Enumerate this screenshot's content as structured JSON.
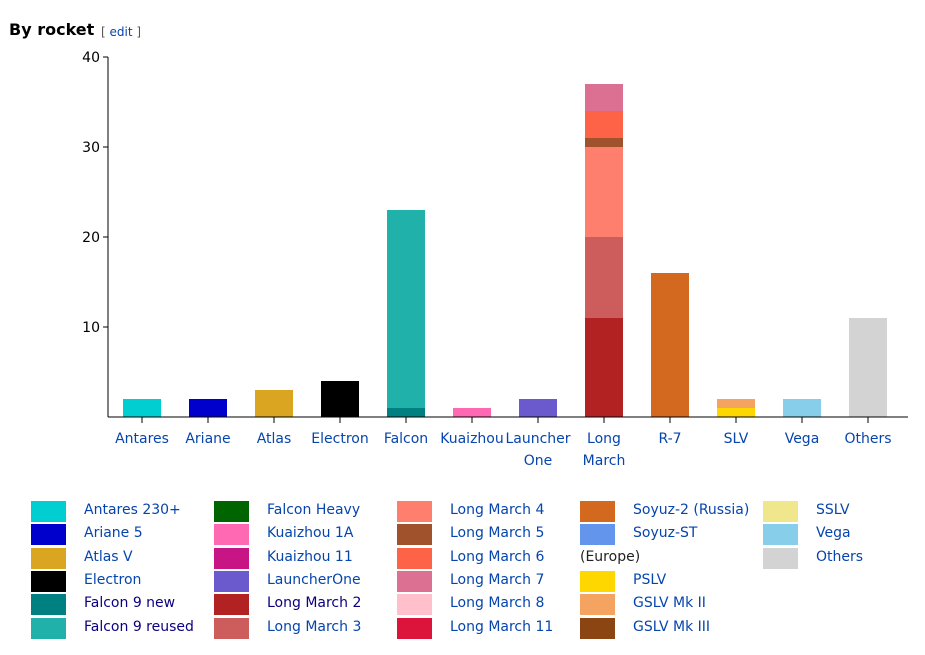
{
  "heading": {
    "title": "By rocket",
    "edit": "edit"
  },
  "chart_data": {
    "type": "bar",
    "stacked": true,
    "title": "By rocket",
    "ylim": [
      0,
      40
    ],
    "yticks": [
      10,
      20,
      30,
      40
    ],
    "categories": [
      {
        "label": [
          "Antares"
        ],
        "segments": [
          {
            "series": "Antares 230+",
            "value": 2
          }
        ]
      },
      {
        "label": [
          "Ariane"
        ],
        "segments": [
          {
            "series": "Ariane 5",
            "value": 2
          }
        ]
      },
      {
        "label": [
          "Atlas"
        ],
        "segments": [
          {
            "series": "Atlas V",
            "value": 3
          }
        ]
      },
      {
        "label": [
          "Electron"
        ],
        "segments": [
          {
            "series": "Electron",
            "value": 4
          }
        ]
      },
      {
        "label": [
          "Falcon"
        ],
        "segments": [
          {
            "series": "Falcon 9 new",
            "value": 1
          },
          {
            "series": "Falcon 9 reused",
            "value": 22
          }
        ]
      },
      {
        "label": [
          "Kuaizhou"
        ],
        "segments": [
          {
            "series": "Kuaizhou 1A",
            "value": 1
          }
        ]
      },
      {
        "label": [
          "Launcher",
          "One"
        ],
        "segments": [
          {
            "series": "LauncherOne",
            "value": 2
          }
        ]
      },
      {
        "label": [
          "Long",
          "March"
        ],
        "segments": [
          {
            "series": "Long March 2",
            "value": 11
          },
          {
            "series": "Long March 3",
            "value": 9
          },
          {
            "series": "Long March 4",
            "value": 10
          },
          {
            "series": "Long March 5",
            "value": 1
          },
          {
            "series": "Long March 6",
            "value": 3
          },
          {
            "series": "Long March 7",
            "value": 3
          }
        ]
      },
      {
        "label": [
          "R-7"
        ],
        "segments": [
          {
            "series": "Soyuz-2 (Russia)",
            "value": 16
          }
        ]
      },
      {
        "label": [
          "SLV"
        ],
        "segments": [
          {
            "series": "PSLV",
            "value": 1
          },
          {
            "series": "GSLV Mk II",
            "value": 1
          }
        ]
      },
      {
        "label": [
          "Vega"
        ],
        "segments": [
          {
            "series": "Vega",
            "value": 2
          }
        ]
      },
      {
        "label": [
          "Others"
        ],
        "segments": [
          {
            "series": "Others",
            "value": 11
          }
        ]
      }
    ],
    "legend": [
      [
        {
          "name": "Antares 230+",
          "color": "#00CED1"
        },
        {
          "name": "Ariane 5",
          "color": "#0000CD"
        },
        {
          "name": "Atlas V",
          "color": "#DAA520"
        },
        {
          "name": "Electron",
          "color": "#000000"
        },
        {
          "name": "Falcon 9 new",
          "color": "#008080"
        },
        {
          "name": "Falcon 9 reused",
          "color": "#20B2AA"
        }
      ],
      [
        {
          "name": "Falcon Heavy",
          "color": "#006400"
        },
        {
          "name": "Kuaizhou 1A",
          "color": "#FF69B4"
        },
        {
          "name": "Kuaizhou 11",
          "color": "#C71585"
        },
        {
          "name": "LauncherOne",
          "color": "#6A5ACD"
        },
        {
          "name": "Long March 2",
          "color": "#B22222"
        },
        {
          "name": "Long March 3",
          "color": "#CD5C5C"
        }
      ],
      [
        {
          "name": "Long March 4",
          "color": "#FF7F6F"
        },
        {
          "name": "Long March 5",
          "color": "#A0522D"
        },
        {
          "name": "Long March 6",
          "color": "#FF6347"
        },
        {
          "name": "Long March 7",
          "color": "#DB7093"
        },
        {
          "name": "Long March 8",
          "color": "#FFC0CB"
        },
        {
          "name": "Long March 11",
          "color": "#DC143C"
        }
      ],
      [
        {
          "name": "Soyuz-2 (Russia)",
          "color": "#D2691E"
        },
        {
          "name": "Soyuz-ST",
          "color": "#6495ED",
          "suffix": "(Europe)"
        },
        {
          "name": "PSLV",
          "color": "#FFD700"
        },
        {
          "name": "GSLV Mk II",
          "color": "#F4A460"
        },
        {
          "name": "GSLV Mk III",
          "color": "#8B4513"
        }
      ],
      [
        {
          "name": "SSLV",
          "color": "#F0E68C"
        },
        {
          "name": "Vega",
          "color": "#87CEEB"
        },
        {
          "name": "Others",
          "color": "#D3D3D3"
        }
      ]
    ]
  }
}
